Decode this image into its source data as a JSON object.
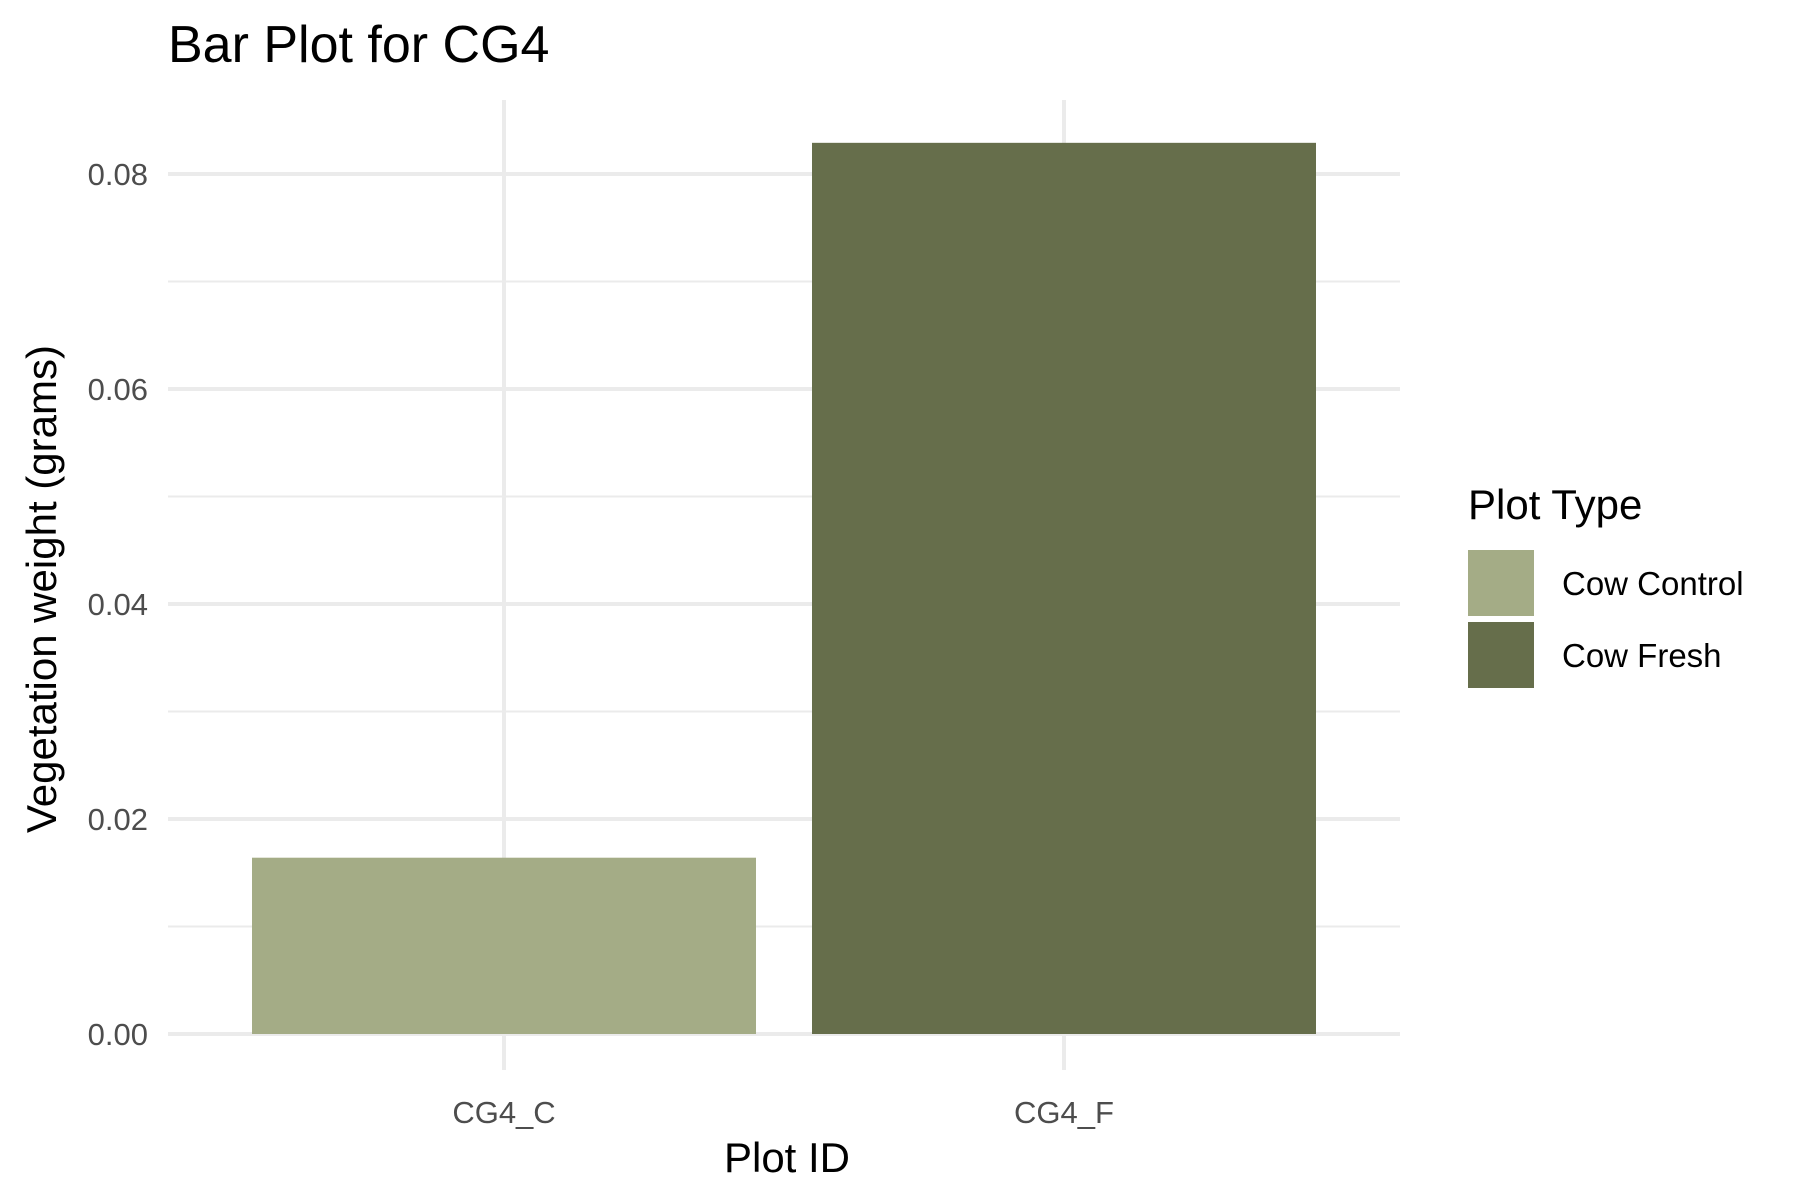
{
  "chart_data": {
    "type": "bar",
    "title": "Bar Plot for CG4",
    "xlabel": "Plot ID",
    "ylabel": "Vegetation weight (grams)",
    "categories": [
      "CG4_C",
      "CG4_F"
    ],
    "values": [
      0.0164,
      0.0829
    ],
    "bar_colors": [
      "#a4ac86",
      "#666e4b"
    ],
    "ylim": [
      0,
      0.087
    ],
    "yticks": [
      "0.00",
      "0.02",
      "0.04",
      "0.06",
      "0.08"
    ],
    "ytick_values": [
      0,
      0.02,
      0.04,
      0.06,
      0.08
    ],
    "grid": true,
    "legend": {
      "title": "Plot Type",
      "placement": "right",
      "entries": [
        {
          "label": "Cow Control",
          "color": "#a4ac86"
        },
        {
          "label": "Cow Fresh",
          "color": "#666e4b"
        }
      ]
    }
  }
}
